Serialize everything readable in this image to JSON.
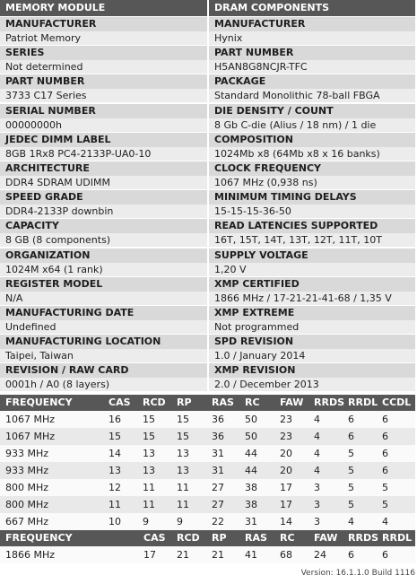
{
  "header": {
    "left": "MEMORY MODULE",
    "right": "DRAM COMPONENTS"
  },
  "module": [
    {
      "label": "MANUFACTURER",
      "value": "Patriot Memory"
    },
    {
      "label": "SERIES",
      "value": "Not determined"
    },
    {
      "label": "PART NUMBER",
      "value": "3733 C17 Series"
    },
    {
      "label": "SERIAL NUMBER",
      "value": "00000000h"
    },
    {
      "label": "JEDEC DIMM LABEL",
      "value": "8GB 1Rx8 PC4-2133P-UA0-10"
    },
    {
      "label": "ARCHITECTURE",
      "value": "DDR4 SDRAM UDIMM"
    },
    {
      "label": "SPEED GRADE",
      "value": "DDR4-2133P downbin"
    },
    {
      "label": "CAPACITY",
      "value": "8 GB (8 components)"
    },
    {
      "label": "ORGANIZATION",
      "value": "1024M x64 (1 rank)"
    },
    {
      "label": "REGISTER MODEL",
      "value": "N/A"
    },
    {
      "label": "MANUFACTURING DATE",
      "value": "Undefined"
    },
    {
      "label": "MANUFACTURING LOCATION",
      "value": "Taipei, Taiwan"
    },
    {
      "label": "REVISION / RAW CARD",
      "value": "0001h / A0 (8 layers)"
    }
  ],
  "dram": [
    {
      "label": "MANUFACTURER",
      "value": "Hynix"
    },
    {
      "label": "PART NUMBER",
      "value": "H5AN8G8NCJR-TFC"
    },
    {
      "label": "PACKAGE",
      "value": "Standard Monolithic 78-ball FBGA"
    },
    {
      "label": "DIE DENSITY / COUNT",
      "value": "8 Gb C-die (Alius / 18 nm) / 1 die"
    },
    {
      "label": "COMPOSITION",
      "value": "1024Mb x8 (64Mb x8 x 16 banks)"
    },
    {
      "label": "CLOCK FREQUENCY",
      "value": "1067 MHz (0,938 ns)"
    },
    {
      "label": "MINIMUM TIMING DELAYS",
      "value": "15-15-15-36-50"
    },
    {
      "label": "READ LATENCIES SUPPORTED",
      "value": "16T, 15T, 14T, 13T, 12T, 11T, 10T"
    },
    {
      "label": "SUPPLY VOLTAGE",
      "value": "1,20 V"
    },
    {
      "label": "XMP CERTIFIED",
      "value": "1866 MHz / 17-21-21-41-68 / 1,35 V"
    },
    {
      "label": "XMP EXTREME",
      "value": "Not programmed"
    },
    {
      "label": "SPD REVISION",
      "value": "1.0 / January 2014"
    },
    {
      "label": "XMP REVISION",
      "value": "2.0 / December 2013"
    }
  ],
  "timings": {
    "columns": [
      "FREQUENCY",
      "CAS",
      "RCD",
      "RP",
      "RAS",
      "RC",
      "FAW",
      "RRDS",
      "RRDL",
      "CCDL"
    ],
    "rows": [
      [
        "1067 MHz",
        16,
        15,
        15,
        36,
        50,
        23,
        4,
        6,
        6
      ],
      [
        "1067 MHz",
        15,
        15,
        15,
        36,
        50,
        23,
        4,
        6,
        6
      ],
      [
        "933 MHz",
        14,
        13,
        13,
        31,
        44,
        20,
        4,
        5,
        6
      ],
      [
        "933 MHz",
        13,
        13,
        13,
        31,
        44,
        20,
        4,
        5,
        6
      ],
      [
        "800 MHz",
        12,
        11,
        11,
        27,
        38,
        17,
        3,
        5,
        5
      ],
      [
        "800 MHz",
        11,
        11,
        11,
        27,
        38,
        17,
        3,
        5,
        5
      ],
      [
        "667 MHz",
        10,
        9,
        9,
        22,
        31,
        14,
        3,
        4,
        4
      ]
    ]
  },
  "xmp": {
    "columns": [
      "FREQUENCY",
      "CAS",
      "RCD",
      "RP",
      "RAS",
      "RC",
      "FAW",
      "RRDS",
      "RRDL"
    ],
    "rows": [
      [
        "1866 MHz",
        17,
        21,
        21,
        41,
        68,
        24,
        6,
        6
      ]
    ]
  },
  "version": "Version: 16.1.1.0 Build 1116"
}
